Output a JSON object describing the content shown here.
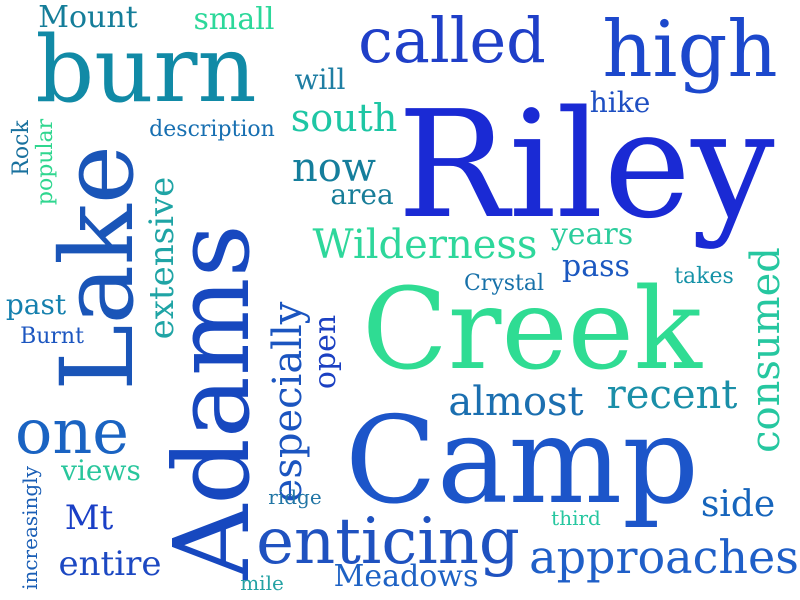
{
  "words": [
    {
      "text": "Riley",
      "color": "#1a2ad4"
    },
    {
      "text": "Camp",
      "color": "#1c55c9"
    },
    {
      "text": "Creek",
      "color": "#2fdc93"
    },
    {
      "text": "Adams",
      "color": "#1748bf"
    },
    {
      "text": "Lake",
      "color": "#1a55b8"
    },
    {
      "text": "burn",
      "color": "#118aa6"
    },
    {
      "text": "high",
      "color": "#1c48cc"
    },
    {
      "text": "called",
      "color": "#1f3fc8"
    },
    {
      "text": "enticing",
      "color": "#1f52c0"
    },
    {
      "text": "one",
      "color": "#1a63c2"
    },
    {
      "text": "approaches",
      "color": "#1f5fc8"
    },
    {
      "text": "Wilderness",
      "color": "#2ed79b"
    },
    {
      "text": "almost",
      "color": "#1b6fb0"
    },
    {
      "text": "recent",
      "color": "#1a8fa8"
    },
    {
      "text": "especially",
      "color": "#1b55c0"
    },
    {
      "text": "consumed",
      "color": "#26c7a0"
    },
    {
      "text": "south",
      "color": "#1ec6a4"
    },
    {
      "text": "now",
      "color": "#157e9c"
    },
    {
      "text": "extensive",
      "color": "#1fa4a5"
    },
    {
      "text": "Mount",
      "color": "#147d99"
    },
    {
      "text": "small",
      "color": "#2cd89a"
    },
    {
      "text": "years",
      "color": "#2bcc9c"
    },
    {
      "text": "pass",
      "color": "#1b58c0"
    },
    {
      "text": "side",
      "color": "#1665bc"
    },
    {
      "text": "Mt",
      "color": "#1a3fc6"
    },
    {
      "text": "entire",
      "color": "#1c48c2"
    },
    {
      "text": "views",
      "color": "#29c69c"
    },
    {
      "text": "area",
      "color": "#187d98"
    },
    {
      "text": "will",
      "color": "#1f7ea3"
    },
    {
      "text": "past",
      "color": "#1580ae"
    },
    {
      "text": "hike",
      "color": "#1e4fc2"
    },
    {
      "text": "open",
      "color": "#1b40c2"
    },
    {
      "text": "Meadows",
      "color": "#1e62c4"
    },
    {
      "text": "description",
      "color": "#176fb1"
    },
    {
      "text": "increasingly",
      "color": "#1b5fb6"
    },
    {
      "text": "Crystal",
      "color": "#1771a9"
    },
    {
      "text": "takes",
      "color": "#1592a7"
    },
    {
      "text": "Burnt",
      "color": "#1c56c0"
    },
    {
      "text": "Rock",
      "color": "#19719e"
    },
    {
      "text": "popular",
      "color": "#2fd68f"
    },
    {
      "text": "ridge",
      "color": "#2175a5"
    },
    {
      "text": "third",
      "color": "#27c7a0"
    },
    {
      "text": "mile",
      "color": "#25a2a4"
    }
  ]
}
